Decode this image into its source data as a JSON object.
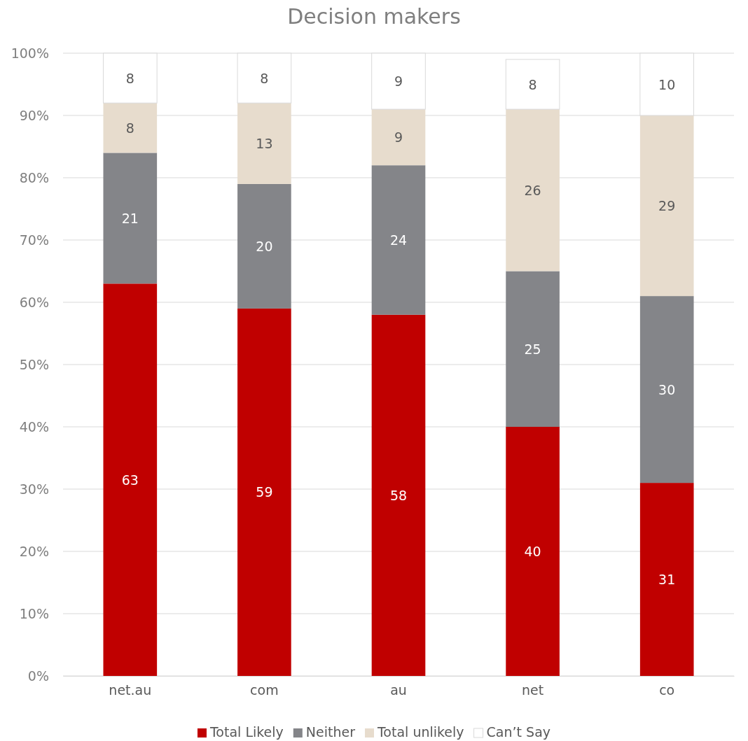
{
  "chart_data": {
    "type": "bar",
    "title": "Decision makers",
    "categories": [
      "net.au",
      "com",
      "au",
      "net",
      "co"
    ],
    "series": [
      {
        "name": "Total Likely",
        "color": "#c00000",
        "values": [
          63,
          59,
          58,
          40,
          31
        ]
      },
      {
        "name": "Neither",
        "color": "#848589",
        "values": [
          21,
          20,
          24,
          25,
          30
        ]
      },
      {
        "name": "Total unlikely",
        "color": "#e7dccd",
        "values": [
          8,
          13,
          9,
          26,
          29
        ]
      },
      {
        "name": "Can’t Say",
        "color": "#ffffff",
        "values": [
          8,
          8,
          9,
          8,
          10
        ]
      }
    ],
    "stacked": true,
    "data_labels": true,
    "ylim": [
      0,
      100
    ],
    "yticks": [
      {
        "value": 0,
        "label": "0%"
      },
      {
        "value": 10,
        "label": "10%"
      },
      {
        "value": 20,
        "label": "20%"
      },
      {
        "value": 30,
        "label": "30%"
      },
      {
        "value": 40,
        "label": "40%"
      },
      {
        "value": 50,
        "label": "50%"
      },
      {
        "value": 60,
        "label": "60%"
      },
      {
        "value": 70,
        "label": "70%"
      },
      {
        "value": 80,
        "label": "80%"
      },
      {
        "value": 90,
        "label": "90%"
      },
      {
        "value": 100,
        "label": "100%"
      }
    ],
    "grid": "y",
    "legend": "bottom"
  }
}
